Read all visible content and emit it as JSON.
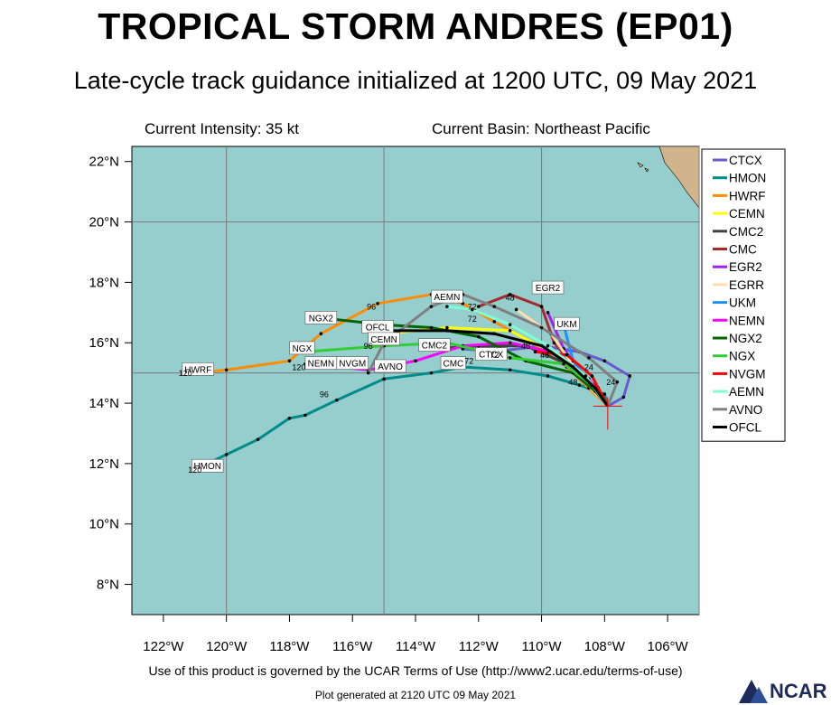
{
  "header": {
    "title": "TROPICAL STORM ANDRES (EP01)",
    "subtitle": "Late-cycle track guidance initialized at 1200 UTC, 09 May 2021",
    "intensity": "Current Intensity: 35 kt",
    "basin": "Current Basin: Northeast Pacific"
  },
  "footer": {
    "terms": "Use of this product is governed by the UCAR Terms of Use (http://www2.ucar.edu/terms-of-use)",
    "generated": "Plot generated at 2120 UTC   09 May 2021",
    "logo": "NCAR"
  },
  "colors": {
    "ocean": "#96cdcd",
    "land": "#d2b48c",
    "grid": "#7a7a7a"
  },
  "chart_data": {
    "type": "line",
    "xlim": [
      -123,
      -105
    ],
    "ylim": [
      7,
      22.5
    ],
    "xticks": [
      {
        "v": -122,
        "label": "122°W"
      },
      {
        "v": -120,
        "label": "120°W"
      },
      {
        "v": -118,
        "label": "118°W"
      },
      {
        "v": -116,
        "label": "116°W"
      },
      {
        "v": -114,
        "label": "114°W"
      },
      {
        "v": -112,
        "label": "112°W"
      },
      {
        "v": -110,
        "label": "110°W"
      },
      {
        "v": -108,
        "label": "108°W"
      },
      {
        "v": -106,
        "label": "106°W"
      }
    ],
    "yticks": [
      {
        "v": 8,
        "label": "8°N"
      },
      {
        "v": 10,
        "label": "10°N"
      },
      {
        "v": 12,
        "label": "12°N"
      },
      {
        "v": 14,
        "label": "14°N"
      },
      {
        "v": 16,
        "label": "16°N"
      },
      {
        "v": 18,
        "label": "18°N"
      },
      {
        "v": 20,
        "label": "20°N"
      },
      {
        "v": 22,
        "label": "22°N"
      }
    ],
    "gridlines": {
      "lon": [
        -120,
        -115,
        -110,
        -105
      ],
      "lat": [
        15,
        20
      ]
    },
    "legend_position": "right",
    "current_position": {
      "lon": -107.9,
      "lat": 13.9
    },
    "series": [
      {
        "name": "CTCX",
        "color": "#6a5acd",
        "points": [
          [
            -107.9,
            13.9
          ],
          [
            -107.4,
            14.2
          ],
          [
            -107.2,
            14.9
          ],
          [
            -108.0,
            15.4
          ],
          [
            -108.8,
            15.7
          ],
          [
            -110.0,
            15.9
          ],
          [
            -111.5,
            15.7
          ],
          [
            -112.5,
            15.8
          ]
        ]
      },
      {
        "name": "HMON",
        "color": "#008b8b",
        "points": [
          [
            -107.9,
            13.9
          ],
          [
            -108.0,
            14.3
          ],
          [
            -108.8,
            14.6
          ],
          [
            -109.8,
            14.9
          ],
          [
            -111.0,
            15.1
          ],
          [
            -112.5,
            15.2
          ],
          [
            -113.5,
            15.0
          ],
          [
            -115.0,
            14.8
          ],
          [
            -116.5,
            14.1
          ],
          [
            -117.5,
            13.6
          ],
          [
            -118.0,
            13.5
          ],
          [
            -119.0,
            12.8
          ],
          [
            -120.0,
            12.3
          ],
          [
            -121.0,
            11.8
          ]
        ]
      },
      {
        "name": "HWRF",
        "color": "#ff8c00",
        "points": [
          [
            -107.9,
            13.9
          ],
          [
            -108.5,
            14.5
          ],
          [
            -109.2,
            15.2
          ],
          [
            -110.3,
            16.0
          ],
          [
            -111.5,
            16.7
          ],
          [
            -112.5,
            17.3
          ],
          [
            -113.5,
            17.6
          ],
          [
            -115.2,
            17.3
          ],
          [
            -117.0,
            16.3
          ],
          [
            -118.0,
            15.4
          ],
          [
            -120.0,
            15.1
          ],
          [
            -121.0,
            15.0
          ]
        ]
      },
      {
        "name": "CEMN",
        "color": "#ffff00",
        "points": [
          [
            -107.9,
            13.9
          ],
          [
            -108.4,
            14.6
          ],
          [
            -109.5,
            15.6
          ],
          [
            -111.0,
            16.4
          ],
          [
            -113.0,
            16.5
          ],
          [
            -115.0,
            16.3
          ]
        ]
      },
      {
        "name": "CMC2",
        "color": "#404040",
        "points": [
          [
            -107.9,
            13.9
          ],
          [
            -108.2,
            14.5
          ],
          [
            -109.2,
            15.3
          ],
          [
            -110.5,
            15.9
          ],
          [
            -112.0,
            15.9
          ],
          [
            -113.5,
            15.8
          ]
        ]
      },
      {
        "name": "CMC",
        "color": "#a52a2a",
        "points": [
          [
            -107.9,
            13.9
          ],
          [
            -108.6,
            14.8
          ],
          [
            -109.6,
            16.0
          ],
          [
            -110.0,
            17.2
          ],
          [
            -111.0,
            17.6
          ],
          [
            -112.0,
            17.2
          ]
        ]
      },
      {
        "name": "EGR2",
        "color": "#a020f0",
        "points": [
          [
            -107.9,
            13.9
          ],
          [
            -108.5,
            14.7
          ],
          [
            -109.3,
            15.8
          ],
          [
            -109.8,
            17.0
          ]
        ]
      },
      {
        "name": "EGRR",
        "color": "#ffdead",
        "points": [
          [
            -107.9,
            13.9
          ],
          [
            -108.7,
            14.8
          ],
          [
            -109.7,
            16.3
          ],
          [
            -110.8,
            17.1
          ]
        ]
      },
      {
        "name": "UKM",
        "color": "#1e90ff",
        "points": [
          [
            -107.9,
            13.9
          ],
          [
            -108.4,
            14.6
          ],
          [
            -109.0,
            15.4
          ],
          [
            -109.3,
            16.6
          ]
        ]
      },
      {
        "name": "NEMN",
        "color": "#ff00ff",
        "points": [
          [
            -107.9,
            13.9
          ],
          [
            -108.5,
            14.8
          ],
          [
            -109.7,
            15.7
          ],
          [
            -111.0,
            16.0
          ],
          [
            -112.5,
            15.9
          ],
          [
            -114.0,
            15.4
          ],
          [
            -115.5,
            15.1
          ],
          [
            -117.5,
            15.3
          ]
        ]
      },
      {
        "name": "NGX2",
        "color": "#006400",
        "points": [
          [
            -107.9,
            13.9
          ],
          [
            -108.3,
            14.4
          ],
          [
            -109.0,
            15.0
          ],
          [
            -110.5,
            15.4
          ],
          [
            -112.0,
            16.2
          ],
          [
            -113.5,
            16.5
          ],
          [
            -115.0,
            16.6
          ],
          [
            -116.8,
            16.8
          ]
        ]
      },
      {
        "name": "NGX",
        "color": "#32cd32",
        "points": [
          [
            -107.9,
            13.9
          ],
          [
            -108.4,
            14.6
          ],
          [
            -109.3,
            15.3
          ],
          [
            -111.0,
            15.5
          ],
          [
            -113.0,
            16.0
          ],
          [
            -115.0,
            15.9
          ],
          [
            -117.5,
            15.7
          ]
        ]
      },
      {
        "name": "NVGM",
        "color": "#ff0000",
        "points": [
          [
            -107.9,
            13.9
          ],
          [
            -108.4,
            14.9
          ],
          [
            -109.2,
            15.6
          ],
          [
            -110.2,
            15.7
          ]
        ]
      },
      {
        "name": "AEMN",
        "color": "#7fffd4",
        "points": [
          [
            -107.9,
            13.9
          ],
          [
            -108.6,
            14.9
          ],
          [
            -109.8,
            15.9
          ],
          [
            -111.0,
            16.6
          ],
          [
            -112.2,
            17.1
          ],
          [
            -113.0,
            17.2
          ]
        ]
      },
      {
        "name": "AVNO",
        "color": "#808080",
        "points": [
          [
            -107.9,
            13.9
          ],
          [
            -107.6,
            14.7
          ],
          [
            -108.5,
            15.5
          ],
          [
            -110.0,
            16.5
          ],
          [
            -111.5,
            17.2
          ],
          [
            -112.5,
            17.6
          ],
          [
            -113.5,
            17.2
          ],
          [
            -115.0,
            16.0
          ],
          [
            -115.5,
            15.0
          ]
        ]
      },
      {
        "name": "OFCL",
        "color": "#000000",
        "points": [
          [
            -107.9,
            13.9
          ],
          [
            -108.3,
            14.5
          ],
          [
            -109.0,
            15.2
          ],
          [
            -110.0,
            15.9
          ],
          [
            -111.5,
            16.3
          ],
          [
            -113.0,
            16.4
          ],
          [
            -114.8,
            16.4
          ]
        ]
      }
    ],
    "track_labels": [
      {
        "text": "HWRF",
        "lon": -120.9,
        "lat": 15.1
      },
      {
        "text": "HMON",
        "lon": -120.6,
        "lat": 11.9
      },
      {
        "text": "NGX2",
        "lon": -117.0,
        "lat": 16.8
      },
      {
        "text": "NGX",
        "lon": -117.6,
        "lat": 15.8
      },
      {
        "text": "NEMN",
        "lon": -117.0,
        "lat": 15.3
      },
      {
        "text": "NVGM",
        "lon": -116.0,
        "lat": 15.3
      },
      {
        "text": "OFCL",
        "lon": -115.2,
        "lat": 16.5
      },
      {
        "text": "CEMN",
        "lon": -115.0,
        "lat": 16.1
      },
      {
        "text": "AVNO",
        "lon": -114.8,
        "lat": 15.2
      },
      {
        "text": "AEMN",
        "lon": -113.0,
        "lat": 17.5
      },
      {
        "text": "CMC2",
        "lon": -113.4,
        "lat": 15.9
      },
      {
        "text": "CMC",
        "lon": -112.8,
        "lat": 15.3
      },
      {
        "text": "CTCX",
        "lon": -111.6,
        "lat": 15.6
      },
      {
        "text": "EGR2",
        "lon": -109.8,
        "lat": 17.8
      },
      {
        "text": "UKM",
        "lon": -109.2,
        "lat": 16.6
      }
    ],
    "hour_labels": [
      {
        "text": "120",
        "lon": -121.3,
        "lat": 14.9
      },
      {
        "text": "120",
        "lon": -121.0,
        "lat": 11.7
      },
      {
        "text": "120",
        "lon": -117.7,
        "lat": 15.1
      },
      {
        "text": "96",
        "lon": -115.4,
        "lat": 17.1
      },
      {
        "text": "96",
        "lon": -115.5,
        "lat": 15.8
      },
      {
        "text": "96",
        "lon": -116.9,
        "lat": 14.2
      },
      {
        "text": "72",
        "lon": -112.2,
        "lat": 17.1
      },
      {
        "text": "72",
        "lon": -112.2,
        "lat": 16.7
      },
      {
        "text": "72",
        "lon": -111.5,
        "lat": 15.5
      },
      {
        "text": "72",
        "lon": -112.3,
        "lat": 15.3
      },
      {
        "text": "48",
        "lon": -111.0,
        "lat": 17.4
      },
      {
        "text": "48",
        "lon": -110.5,
        "lat": 15.8
      },
      {
        "text": "48",
        "lon": -109.9,
        "lat": 15.5
      },
      {
        "text": "48",
        "lon": -109.0,
        "lat": 14.6
      },
      {
        "text": "24",
        "lon": -108.5,
        "lat": 15.1
      },
      {
        "text": "24",
        "lon": -107.8,
        "lat": 14.6
      }
    ]
  }
}
